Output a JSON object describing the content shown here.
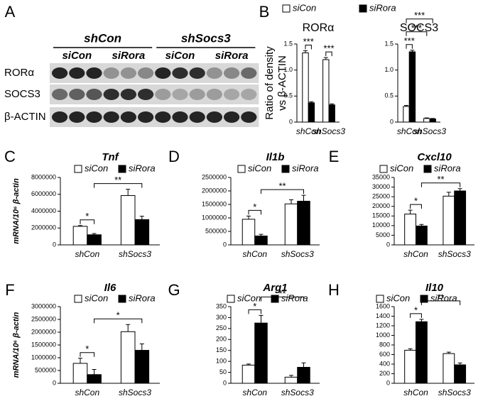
{
  "panel_labels": [
    "A",
    "B",
    "C",
    "D",
    "E",
    "F",
    "G",
    "H"
  ],
  "blot": {
    "groups": [
      "shCon",
      "shSocs3"
    ],
    "subgroups": [
      "siCon",
      "siRora",
      "siCon",
      "siRora"
    ],
    "rows": [
      "RORα",
      "SOCS3",
      "β-ACTIN"
    ]
  },
  "chart_data": [
    {
      "type": "bar",
      "title": "RORα",
      "ylabel": [
        "Ratio of density",
        "vs β-ACTIN"
      ],
      "categories": [
        "shCon",
        "shSocs3"
      ],
      "series": [
        {
          "name": "siCon",
          "color": "#ffffff",
          "values": [
            1.33,
            1.2
          ],
          "errors": [
            0.04,
            0.04
          ]
        },
        {
          "name": "siRora",
          "color": "#000000",
          "values": [
            0.37,
            0.33
          ],
          "errors": [
            0.02,
            0.02
          ]
        }
      ],
      "ylim": [
        0,
        1.5
      ],
      "yticks": [
        0,
        0.5,
        {
          "value": 1,
          "label": "1.0"
        },
        1.5
      ],
      "annotations": [
        "***",
        "***"
      ],
      "legend": true
    },
    {
      "type": "bar",
      "title": "SOCS3",
      "categories": [
        "shCon",
        "shSocs3"
      ],
      "series": [
        {
          "name": "siCon",
          "color": "#ffffff",
          "values": [
            0.3,
            0.07
          ],
          "errors": [
            0.02,
            0.01
          ]
        },
        {
          "name": "siRora",
          "color": "#000000",
          "values": [
            1.35,
            0.06
          ],
          "errors": [
            0.03,
            0.01
          ]
        }
      ],
      "ylim": [
        0,
        1.5
      ],
      "yticks": [
        0,
        0.5,
        {
          "value": 1,
          "label": "1.0"
        },
        1.5
      ],
      "annotations": [
        "***",
        "***",
        "***"
      ],
      "legend": false
    },
    {
      "type": "bar",
      "title": "Tnf",
      "ylabel": [
        "mRNA/10⁶ β-actin"
      ],
      "categories": [
        "shCon",
        "shSocs3"
      ],
      "series": [
        {
          "name": "siCon",
          "color": "#ffffff",
          "values": [
            2200000,
            5850000
          ],
          "errors": [
            100000,
            750000
          ]
        },
        {
          "name": "siRora",
          "color": "#000000",
          "values": [
            1200000,
            3000000
          ],
          "errors": [
            150000,
            400000
          ]
        }
      ],
      "ylim": [
        0,
        8000000
      ],
      "yticks": [
        0,
        2000000,
        4000000,
        6000000,
        8000000
      ],
      "annotations": [
        "*",
        "**"
      ],
      "legend": true
    },
    {
      "type": "bar",
      "title": "Il1b",
      "categories": [
        "shCon",
        "shSocs3"
      ],
      "series": [
        {
          "name": "siCon",
          "color": "#ffffff",
          "values": [
            950000,
            1520000
          ],
          "errors": [
            120000,
            150000
          ]
        },
        {
          "name": "siRora",
          "color": "#000000",
          "values": [
            330000,
            1620000
          ],
          "errors": [
            60000,
            220000
          ]
        }
      ],
      "ylim": [
        0,
        2500000
      ],
      "yticks": [
        0,
        500000,
        1000000,
        1500000,
        2000000,
        2500000
      ],
      "annotations": [
        "*",
        "**"
      ],
      "legend": true
    },
    {
      "type": "bar",
      "title": "Cxcl10",
      "categories": [
        "shCon",
        "shSocs3"
      ],
      "series": [
        {
          "name": "siCon",
          "color": "#ffffff",
          "values": [
            16000,
            25300
          ],
          "errors": [
            2000,
            2000
          ]
        },
        {
          "name": "siRora",
          "color": "#000000",
          "values": [
            9800,
            28000
          ],
          "errors": [
            800,
            1200
          ]
        }
      ],
      "ylim": [
        0,
        35000
      ],
      "yticks": [
        0,
        5000,
        10000,
        15000,
        20000,
        25000,
        30000,
        35000
      ],
      "annotations": [
        "*",
        "**"
      ],
      "legend": true
    },
    {
      "type": "bar",
      "title": "Il6",
      "ylabel": [
        "mRNA/10⁶ β-actin"
      ],
      "categories": [
        "shCon",
        "shSocs3"
      ],
      "series": [
        {
          "name": "siCon",
          "color": "#ffffff",
          "values": [
            780000,
            2020000
          ],
          "errors": [
            200000,
            280000
          ]
        },
        {
          "name": "siRora",
          "color": "#000000",
          "values": [
            340000,
            1290000
          ],
          "errors": [
            200000,
            250000
          ]
        }
      ],
      "ylim": [
        0,
        3000000
      ],
      "yticks": [
        0,
        500000,
        1000000,
        1500000,
        2000000,
        2500000,
        3000000
      ],
      "annotations": [
        "*",
        "*"
      ],
      "legend": true
    },
    {
      "type": "bar",
      "title": "Arg1",
      "categories": [
        "shCon",
        "shSocs3"
      ],
      "series": [
        {
          "name": "siCon",
          "color": "#ffffff",
          "values": [
            83,
            28
          ],
          "errors": [
            5,
            8
          ]
        },
        {
          "name": "siRora",
          "color": "#000000",
          "values": [
            275,
            73
          ],
          "errors": [
            35,
            20
          ]
        }
      ],
      "ylim": [
        0,
        350
      ],
      "yticks": [
        0,
        50,
        100,
        150,
        200,
        250,
        300,
        350
      ],
      "annotations": [
        "*",
        "**"
      ],
      "legend": true
    },
    {
      "type": "bar",
      "title": "Il10",
      "categories": [
        "shCon",
        "shSocs3"
      ],
      "series": [
        {
          "name": "siCon",
          "color": "#ffffff",
          "values": [
            690,
            620
          ],
          "errors": [
            30,
            30
          ]
        },
        {
          "name": "siRora",
          "color": "#000000",
          "values": [
            1285,
            385
          ],
          "errors": [
            50,
            40
          ]
        }
      ],
      "ylim": [
        0,
        1600
      ],
      "yticks": [
        0,
        200,
        400,
        600,
        800,
        1000,
        1200,
        1400,
        1600
      ],
      "annotations": [
        "*",
        "**"
      ],
      "legend": true
    }
  ]
}
